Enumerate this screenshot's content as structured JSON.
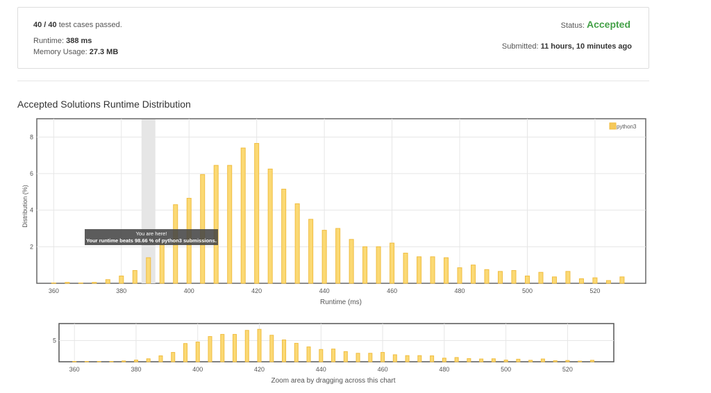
{
  "summary": {
    "cases_count": "40 / 40",
    "cases_suffix": " test cases passed.",
    "runtime_label": "Runtime: ",
    "runtime_value": "388 ms",
    "memory_label": "Memory Usage: ",
    "memory_value": "27.3 MB",
    "status_label": "Status: ",
    "status_value": "Accepted",
    "submitted_label": "Submitted: ",
    "submitted_value": "11 hours, 10 minutes ago"
  },
  "colors": {
    "accepted": "#43a047",
    "bar_fill": "#fbd974",
    "bar_stroke": "#f0bd41",
    "highlight_band": "#e6e6e6"
  },
  "section_title": "Accepted Solutions Runtime Distribution",
  "tooltip": {
    "line1": "You are here!",
    "line2": "Your runtime beats 98.66 % of python3 submissions."
  },
  "zoom_hint": "Zoom area by dragging across this chart",
  "chart_data": [
    {
      "type": "bar",
      "xlabel": "Runtime (ms)",
      "ylabel": "Distribution (%)",
      "xlim": [
        355,
        535
      ],
      "ylim": [
        0,
        9
      ],
      "xticks": [
        360,
        380,
        400,
        420,
        440,
        460,
        480,
        500,
        520
      ],
      "yticks": [
        2,
        4,
        6,
        8
      ],
      "grid": true,
      "legend_position": "top-right",
      "highlight_x": 388,
      "series": [
        {
          "name": "python3",
          "x": [
            360,
            364,
            368,
            372,
            376,
            380,
            384,
            388,
            392,
            396,
            400,
            404,
            408,
            412,
            416,
            420,
            424,
            428,
            432,
            436,
            440,
            444,
            448,
            452,
            456,
            460,
            464,
            468,
            472,
            476,
            480,
            484,
            488,
            492,
            496,
            500,
            504,
            508,
            512,
            516,
            520,
            524,
            528
          ],
          "values": [
            0.02,
            0.05,
            0.02,
            0.05,
            0.2,
            0.4,
            0.7,
            1.4,
            2.2,
            4.3,
            4.65,
            5.95,
            6.45,
            6.45,
            7.4,
            7.65,
            6.25,
            5.15,
            4.35,
            3.5,
            2.9,
            3.0,
            2.4,
            2.0,
            2.0,
            2.2,
            1.65,
            1.45,
            1.45,
            1.4,
            0.85,
            1.0,
            0.75,
            0.65,
            0.7,
            0.4,
            0.6,
            0.35,
            0.65,
            0.25,
            0.3,
            0.15,
            0.35
          ]
        }
      ]
    },
    {
      "type": "bar",
      "xlim": [
        355,
        535
      ],
      "ylim": [
        0,
        9
      ],
      "xticks": [
        360,
        380,
        400,
        420,
        440,
        460,
        480,
        500,
        520
      ],
      "yticks": [
        5
      ],
      "grid": true
    }
  ]
}
